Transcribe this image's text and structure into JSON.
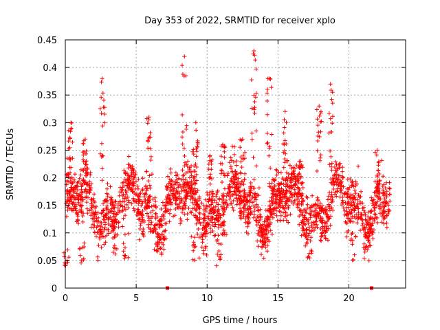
{
  "chart_data": {
    "type": "scatter",
    "title": "Day 353 of 2022, SRMTID for receiver xplo",
    "xlabel": "GPS time / hours",
    "ylabel": "SRMTID / TECUs",
    "xlim": [
      0,
      24
    ],
    "ylim": [
      0,
      0.45
    ],
    "xticks": [
      0,
      5,
      10,
      15,
      20
    ],
    "yticks": [
      0,
      0.05,
      0.1,
      0.15,
      0.2,
      0.25,
      0.3,
      0.35,
      0.4,
      0.45
    ],
    "xtick_labels": [
      "0",
      "5",
      "10",
      "15",
      "20"
    ],
    "ytick_labels": [
      "0",
      "0.05",
      "0.1",
      "0.15",
      "0.2",
      "0.25",
      "0.3",
      "0.35",
      "0.4",
      "0.45"
    ],
    "grid": true,
    "marker": "+",
    "series_color": "#ff0000",
    "baseline_marks": [
      {
        "x": 7.2,
        "y": 0
      },
      {
        "x": 21.6,
        "y": 0
      }
    ],
    "peak_clusters": [
      {
        "x": 0.4,
        "y": 0.3
      },
      {
        "x": 1.4,
        "y": 0.27
      },
      {
        "x": 2.6,
        "y": 0.38
      },
      {
        "x": 5.9,
        "y": 0.31
      },
      {
        "x": 8.4,
        "y": 0.42
      },
      {
        "x": 9.2,
        "y": 0.3
      },
      {
        "x": 10.2,
        "y": 0.24
      },
      {
        "x": 11.1,
        "y": 0.26
      },
      {
        "x": 12.5,
        "y": 0.27
      },
      {
        "x": 13.3,
        "y": 0.43
      },
      {
        "x": 14.4,
        "y": 0.38
      },
      {
        "x": 15.5,
        "y": 0.32
      },
      {
        "x": 16.6,
        "y": 0.23
      },
      {
        "x": 17.9,
        "y": 0.33
      },
      {
        "x": 18.7,
        "y": 0.37
      },
      {
        "x": 22.0,
        "y": 0.25
      }
    ],
    "trough_clusters": [
      {
        "x": 0.1,
        "y": 0.03
      },
      {
        "x": 1.2,
        "y": 0.04
      },
      {
        "x": 3.5,
        "y": 0.06
      },
      {
        "x": 4.3,
        "y": 0.05
      },
      {
        "x": 9.0,
        "y": 0.05
      },
      {
        "x": 10.8,
        "y": 0.04
      },
      {
        "x": 17.2,
        "y": 0.05
      },
      {
        "x": 20.3,
        "y": 0.05
      }
    ],
    "bulk_range": [
      0.08,
      0.22
    ],
    "n_points": 2200
  }
}
